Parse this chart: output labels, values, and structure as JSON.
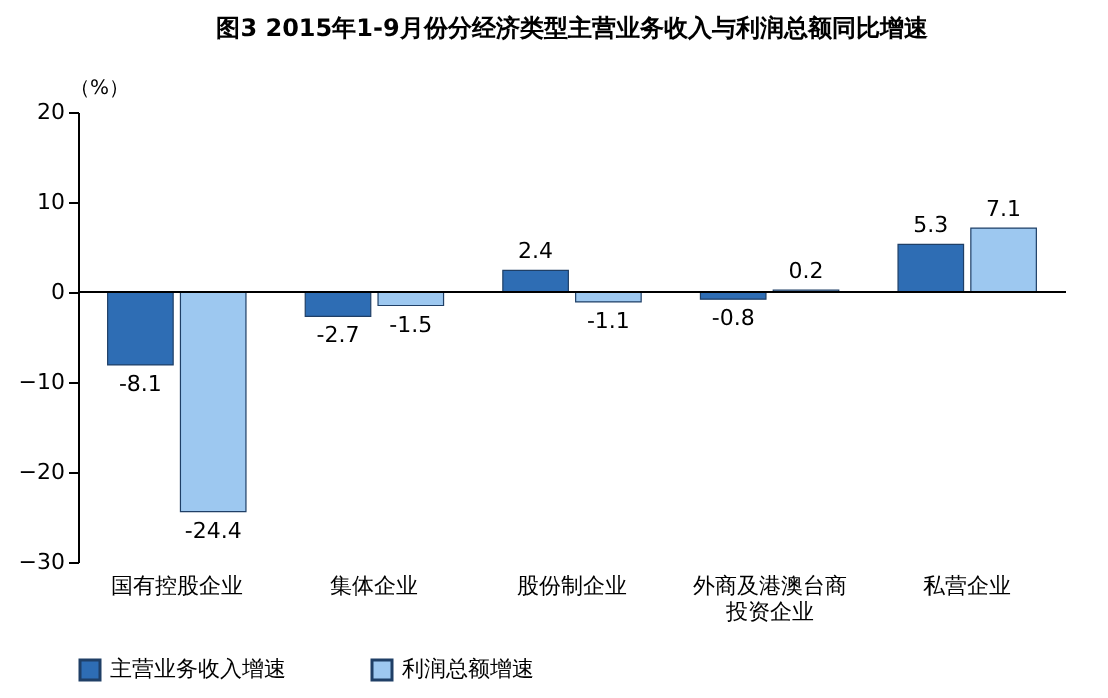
{
  "chart_data": {
    "type": "bar",
    "title": "图3 2015年1-9月份分经济类型主营业务收入与利润总额同比增速",
    "ylabel": "（%）",
    "categories": [
      "国有控股企业",
      "集体企业",
      "股份制企业",
      "外商及港澳台商投资企业",
      "私营企业"
    ],
    "series": [
      {
        "name": "主营业务收入增速",
        "color": "#2e6db4",
        "values": [
          -8.1,
          -2.7,
          2.4,
          -0.8,
          5.3
        ]
      },
      {
        "name": "利润总额增速",
        "color": "#9dc8f0",
        "values": [
          -24.4,
          -1.5,
          -1.1,
          0.2,
          7.1
        ]
      }
    ],
    "ylim": [
      -30,
      20
    ],
    "yticks": [
      -30,
      -20,
      -10,
      0,
      10,
      20
    ],
    "ref_lines": [
      {
        "axis": "y",
        "value": 0,
        "color": "#000000"
      }
    ],
    "legend": "bottom",
    "data_labels": true
  }
}
